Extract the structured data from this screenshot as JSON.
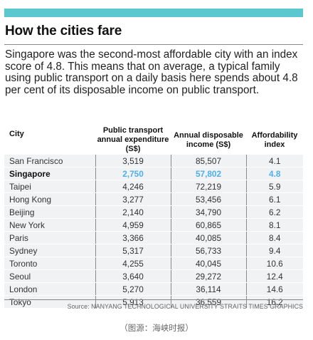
{
  "header": {
    "title": "How the cities fare",
    "description": "Singapore was the second-most affordable city with an index score of 4.8. This means that on average, a typical family using public transport on a daily basis here spends about 4.8 per cent of its disposable income on public transport."
  },
  "colors": {
    "accent_bar": "#5bc7cf",
    "highlight": "#4db0ea"
  },
  "chart_data": {
    "type": "table",
    "columns": [
      "City",
      "Public transport annual expenditure (S$)",
      "Annual disposable income (S$)",
      "Affordability index"
    ],
    "highlight_row": "Singapore",
    "rows": [
      [
        "San Francisco",
        "3,519",
        "85,507",
        "4.1"
      ],
      [
        "Singapore",
        "2,750",
        "57,802",
        "4.8"
      ],
      [
        "Taipei",
        "4,246",
        "72,219",
        "5.9"
      ],
      [
        "Hong Kong",
        "3,277",
        "53,456",
        "6.1"
      ],
      [
        "Beijing",
        "2,140",
        "34,790",
        "6.2"
      ],
      [
        "New York",
        "4,959",
        "60,865",
        "8.1"
      ],
      [
        "Paris",
        "3,366",
        "40,085",
        "8.4"
      ],
      [
        "Sydney",
        "5,317",
        "56,733",
        "9.4"
      ],
      [
        "Toronto",
        "4,255",
        "40,045",
        "10.6"
      ],
      [
        "Seoul",
        "3,640",
        "29,272",
        "12.4"
      ],
      [
        "London",
        "5,270",
        "36,114",
        "14.6"
      ],
      [
        "Tokyo",
        "5,913",
        "36,559",
        "16.2"
      ]
    ]
  },
  "footer": {
    "source": "Source: NANYANG TECHNOLOGICAL UNIVERSITY   STRAITS TIMES GRAPHICS",
    "caption": "（图源：海峡时报）"
  }
}
